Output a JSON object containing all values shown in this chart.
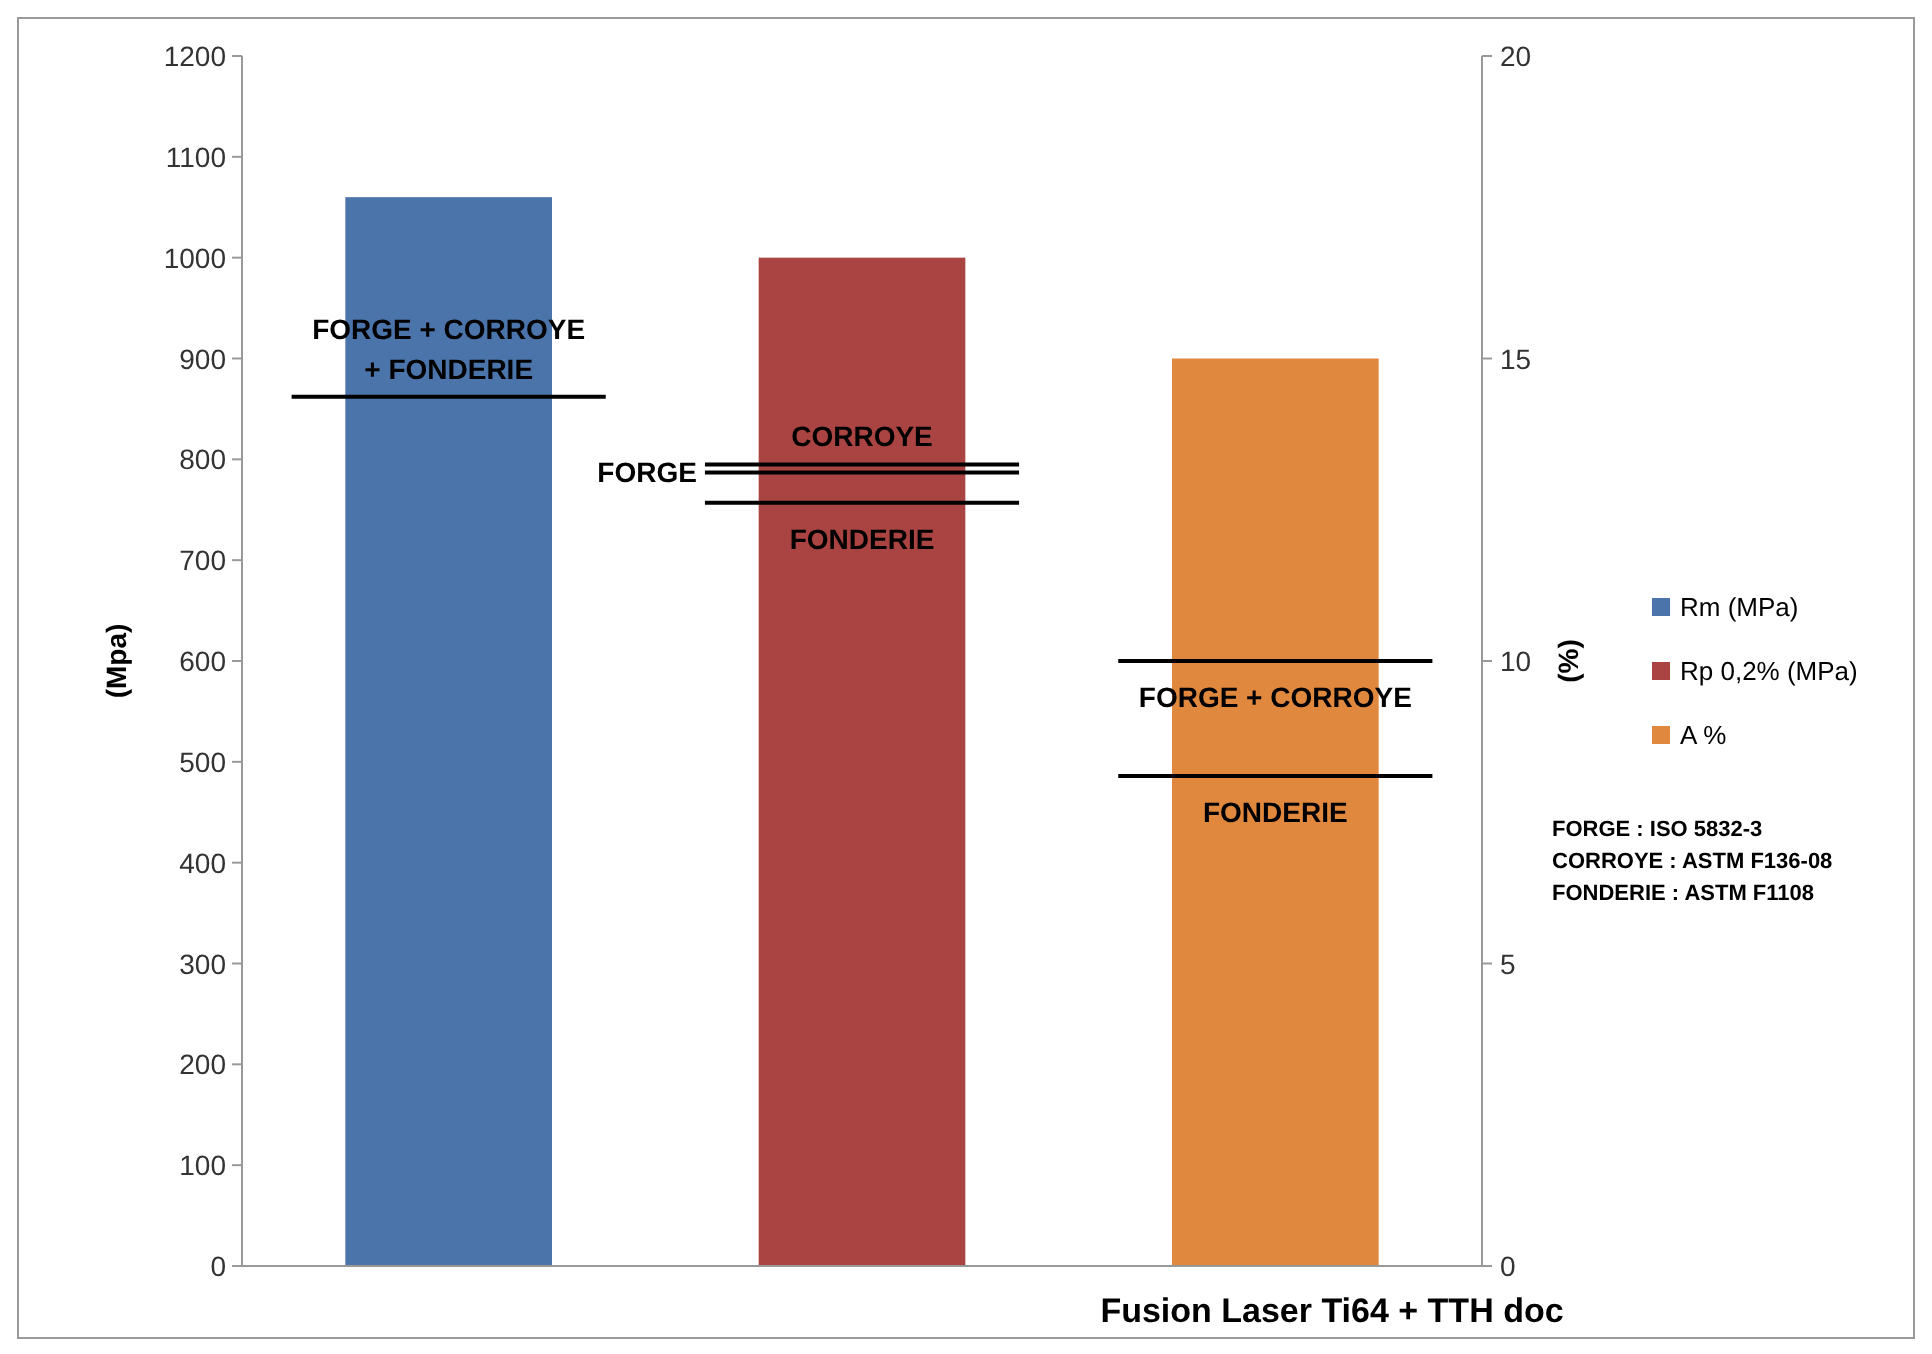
{
  "chart_data": {
    "type": "bar",
    "stacked": true,
    "xlabel": "Fusion Laser Ti64 + TTH doc",
    "ylabel": "(Mpa)",
    "y2label": "(%)",
    "categories": [
      null,
      null,
      null
    ],
    "ylim": [
      0,
      1200
    ],
    "yticks": [
      0,
      100,
      200,
      300,
      400,
      500,
      600,
      700,
      800,
      900,
      1000,
      1100,
      1200
    ],
    "y2lim": [
      0,
      20
    ],
    "y2ticks": [
      0,
      5,
      10,
      15,
      20
    ],
    "legend": "right",
    "grid": false,
    "series": [
      {
        "name": "Rm (MPa)",
        "color": "#4a74aa",
        "values": [
          1060,
          null,
          null
        ]
      },
      {
        "name": "Rp 0,2% (MPa)",
        "color": "#a94442",
        "values": [
          null,
          1000,
          null
        ]
      },
      {
        "name": "A %",
        "color": "#e0883e",
        "values": [
          null,
          null,
          15
        ],
        "axis": "y2"
      }
    ],
    "ref_lines": [
      {
        "axis": "y",
        "value": 862,
        "label": "FORGE + CORROYE + FONDERIE",
        "color": "#000000"
      },
      {
        "axis": "y",
        "value": 795,
        "label": "CORROYE",
        "color": "#000000"
      },
      {
        "axis": "y",
        "value": 787,
        "label": "FORGE",
        "color": "#000000"
      },
      {
        "axis": "y",
        "value": 757,
        "label": "FONDERIE",
        "color": "#000000"
      },
      {
        "axis": "y2",
        "value": 10,
        "label": "FORGE + CORROYE",
        "color": "#000000"
      },
      {
        "axis": "y2",
        "value": 8.1,
        "label": "FONDERIE",
        "color": "#000000"
      }
    ],
    "annotations": [
      "FORGE : ISO 5832-3",
      "CORROYE : ASTM F136-08",
      "FONDERIE : ASTM F1108"
    ]
  }
}
